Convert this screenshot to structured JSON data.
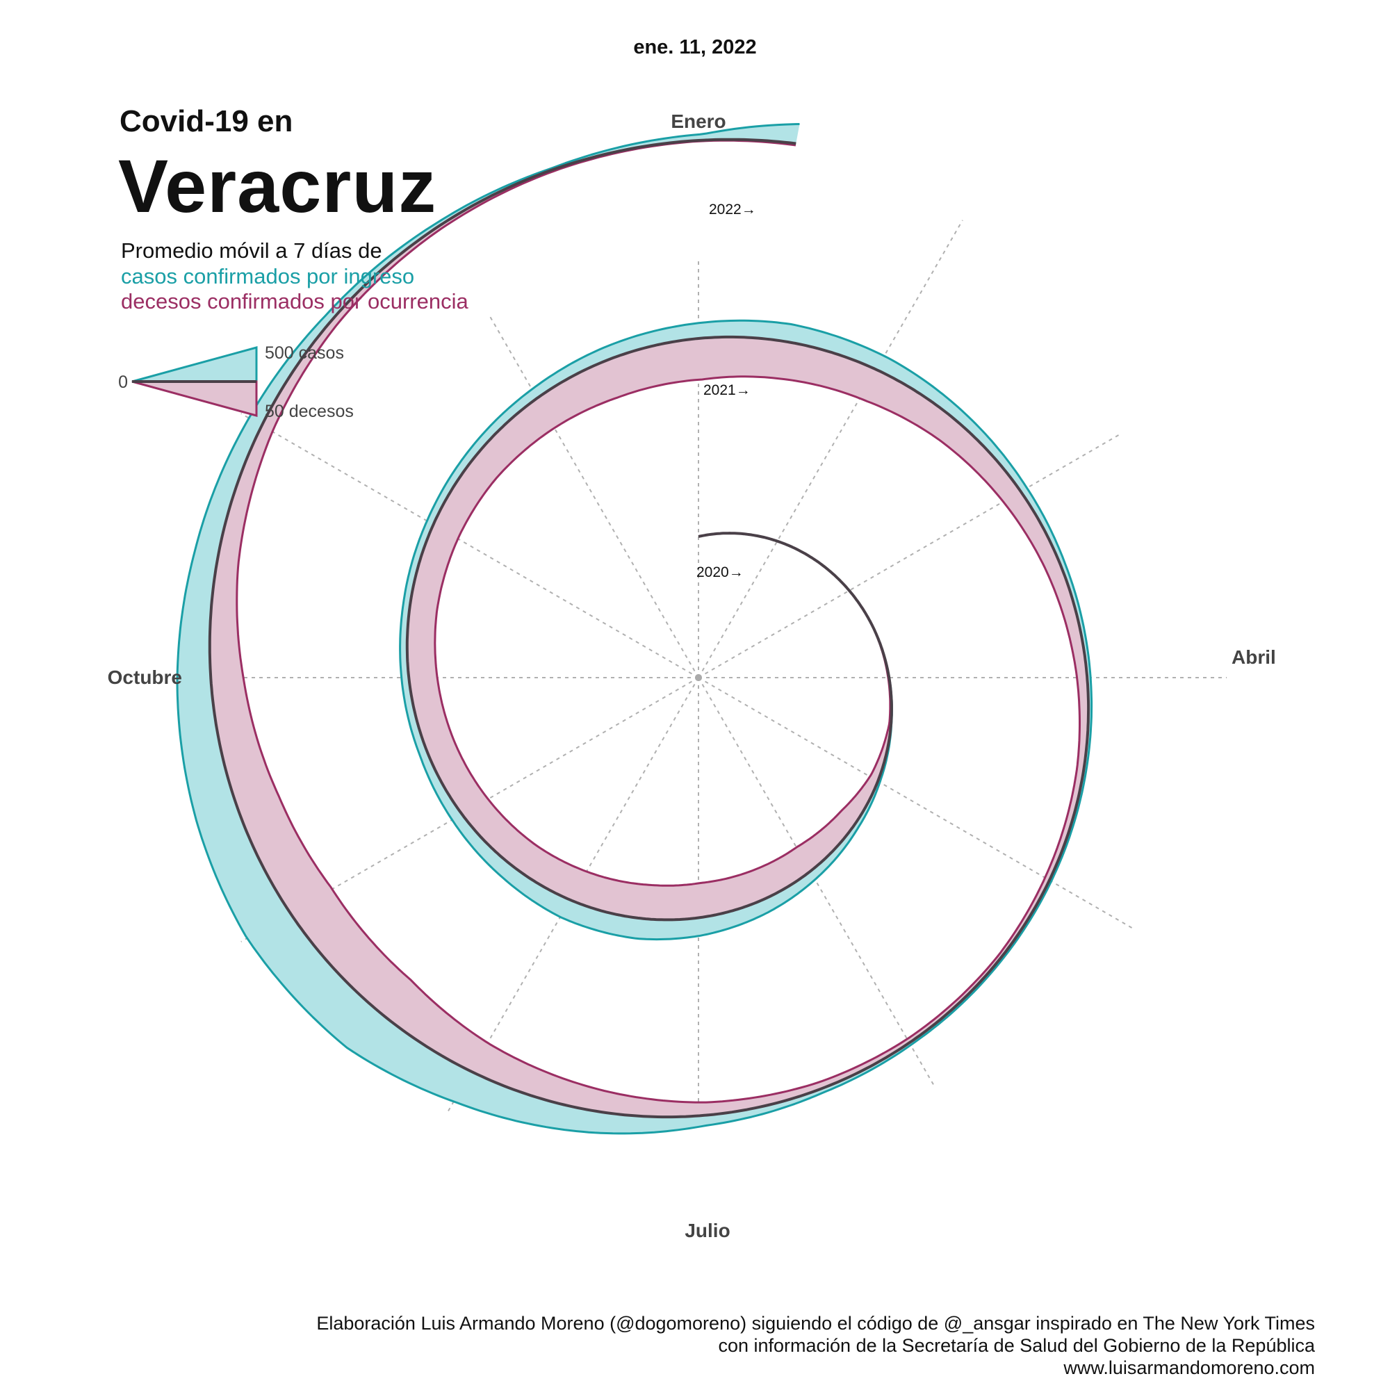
{
  "header": {
    "date": "ene. 11, 2022",
    "title_line1": "Covid-19 en",
    "title_line2": "Veracruz",
    "subtitle_line1": "Promedio móvil a 7 días de",
    "subtitle_line2": "casos confirmados por ingreso",
    "subtitle_line3": "decesos confirmados por ocurrencia"
  },
  "legend": {
    "zero_label": "0",
    "cases_label": "500 casos",
    "deaths_label": "50 decesos"
  },
  "colors": {
    "cases": "#1a9fa6",
    "cases_fill": "#b2e3e6",
    "deaths": "#9b2e63",
    "deaths_fill": "#e2c3d2",
    "baseline": "#4a4048",
    "grid": "#b0b0b0"
  },
  "chart_data": {
    "type": "area",
    "layout": "spiral",
    "period": "one year per revolution",
    "months": [
      "Enero",
      "Abril",
      "Julio",
      "Octubre"
    ],
    "year_labels": [
      "2020→",
      "2021→",
      "2022→"
    ],
    "end_date": "ene. 11, 2022",
    "series": [
      {
        "name": "casos confirmados por ingreso",
        "units": "casos",
        "scale_reference": 500,
        "points": [
          [
            "2020-03-15",
            0
          ],
          [
            "2020-04-15",
            5
          ],
          [
            "2020-05-01",
            25
          ],
          [
            "2020-05-15",
            55
          ],
          [
            "2020-06-01",
            110
          ],
          [
            "2020-06-15",
            160
          ],
          [
            "2020-07-01",
            210
          ],
          [
            "2020-07-15",
            240
          ],
          [
            "2020-08-01",
            230
          ],
          [
            "2020-08-15",
            180
          ],
          [
            "2020-09-01",
            130
          ],
          [
            "2020-09-15",
            95
          ],
          [
            "2020-10-01",
            85
          ],
          [
            "2020-10-15",
            80
          ],
          [
            "2020-11-01",
            85
          ],
          [
            "2020-11-15",
            100
          ],
          [
            "2020-12-01",
            120
          ],
          [
            "2020-12-15",
            150
          ],
          [
            "2021-01-01",
            180
          ],
          [
            "2021-01-15",
            210
          ],
          [
            "2021-02-01",
            180
          ],
          [
            "2021-02-15",
            130
          ],
          [
            "2021-03-01",
            85
          ],
          [
            "2021-03-15",
            55
          ],
          [
            "2021-04-01",
            40
          ],
          [
            "2021-04-15",
            30
          ],
          [
            "2021-05-01",
            25
          ],
          [
            "2021-05-15",
            25
          ],
          [
            "2021-06-01",
            30
          ],
          [
            "2021-06-15",
            50
          ],
          [
            "2021-07-01",
            120
          ],
          [
            "2021-07-15",
            250
          ],
          [
            "2021-08-01",
            400
          ],
          [
            "2021-08-15",
            560
          ],
          [
            "2021-09-01",
            580
          ],
          [
            "2021-09-15",
            500
          ],
          [
            "2021-10-01",
            390
          ],
          [
            "2021-10-15",
            280
          ],
          [
            "2021-11-01",
            170
          ],
          [
            "2021-11-15",
            90
          ],
          [
            "2021-12-01",
            45
          ],
          [
            "2021-12-15",
            20
          ],
          [
            "2022-01-01",
            70
          ],
          [
            "2022-01-11",
            230
          ]
        ]
      },
      {
        "name": "decesos confirmados por ocurrencia",
        "units": "decesos",
        "scale_reference": 50,
        "points": [
          [
            "2020-03-15",
            0
          ],
          [
            "2020-04-15",
            2
          ],
          [
            "2020-05-01",
            10
          ],
          [
            "2020-05-15",
            22
          ],
          [
            "2020-06-01",
            32
          ],
          [
            "2020-06-15",
            36
          ],
          [
            "2020-07-01",
            40
          ],
          [
            "2020-07-15",
            40
          ],
          [
            "2020-08-01",
            38
          ],
          [
            "2020-08-15",
            36
          ],
          [
            "2020-09-01",
            35
          ],
          [
            "2020-09-15",
            34
          ],
          [
            "2020-10-01",
            33
          ],
          [
            "2020-10-15",
            32
          ],
          [
            "2020-11-01",
            33
          ],
          [
            "2020-11-15",
            35
          ],
          [
            "2020-12-01",
            40
          ],
          [
            "2020-12-15",
            45
          ],
          [
            "2021-01-01",
            48
          ],
          [
            "2021-01-15",
            44
          ],
          [
            "2021-02-01",
            38
          ],
          [
            "2021-02-15",
            30
          ],
          [
            "2021-03-01",
            24
          ],
          [
            "2021-03-15",
            18
          ],
          [
            "2021-04-01",
            12
          ],
          [
            "2021-04-15",
            8
          ],
          [
            "2021-05-01",
            6
          ],
          [
            "2021-05-15",
            4
          ],
          [
            "2021-06-01",
            5
          ],
          [
            "2021-06-15",
            8
          ],
          [
            "2021-07-01",
            15
          ],
          [
            "2021-07-15",
            25
          ],
          [
            "2021-08-01",
            38
          ],
          [
            "2021-08-15",
            52
          ],
          [
            "2021-09-01",
            56
          ],
          [
            "2021-09-15",
            50
          ],
          [
            "2021-10-01",
            38
          ],
          [
            "2021-10-15",
            25
          ],
          [
            "2021-11-01",
            14
          ],
          [
            "2021-11-15",
            8
          ],
          [
            "2021-12-01",
            4
          ],
          [
            "2021-12-15",
            2
          ],
          [
            "2022-01-01",
            1
          ],
          [
            "2022-01-11",
            2
          ]
        ]
      }
    ]
  },
  "footer": {
    "line1": "Elaboración Luis Armando Moreno (@dogomoreno) siguiendo el código de @_ansgar inspirado en The New York Times",
    "line2": "con información de la Secretaría de Salud del Gobierno de la República",
    "line3": "www.luisarmandomoreno.com"
  }
}
